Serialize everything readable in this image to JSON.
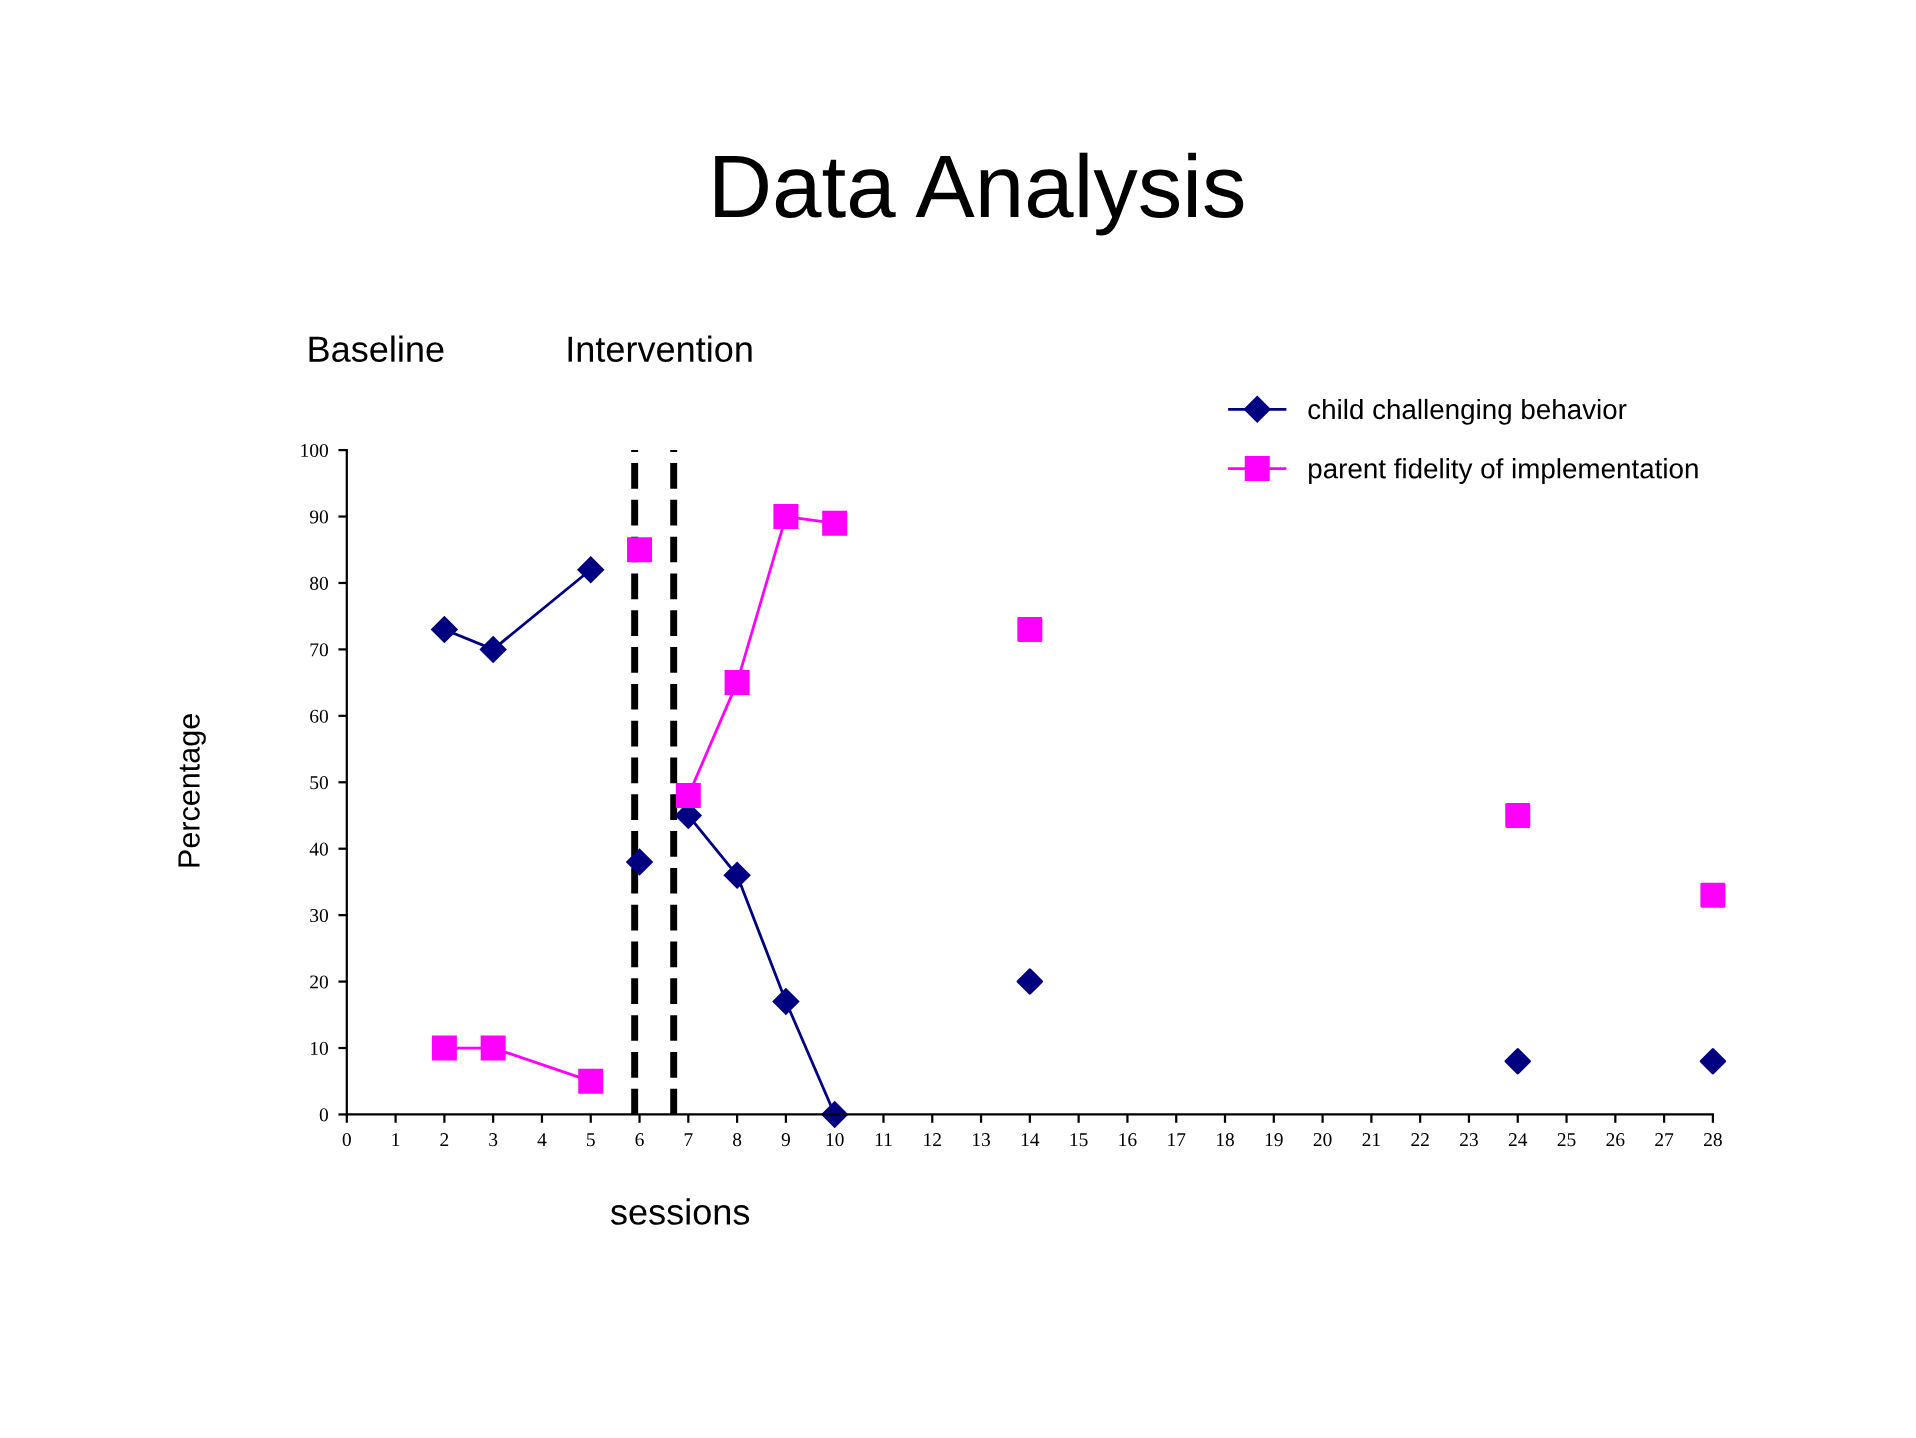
{
  "chart_data": {
    "type": "line",
    "title": "Data Analysis",
    "xlabel": "sessions",
    "ylabel": "Percentage",
    "annotations": [
      "Baseline",
      "Intervention"
    ],
    "xlim": [
      0,
      28
    ],
    "xticks": [
      0,
      1,
      2,
      3,
      4,
      5,
      6,
      7,
      8,
      9,
      10,
      11,
      12,
      13,
      14,
      15,
      16,
      17,
      18,
      19,
      20,
      21,
      22,
      23,
      24,
      25,
      26,
      27,
      28
    ],
    "ylim": [
      0,
      100
    ],
    "yticks": [
      0,
      10,
      20,
      30,
      40,
      50,
      60,
      70,
      80,
      90,
      100
    ],
    "grid": false,
    "legend": "top right",
    "series": [
      {
        "name": "child challenging behavior",
        "color": "#000080",
        "marker": "diamond",
        "x": [
          2,
          3,
          5
        ],
        "values": [
          73,
          70,
          82
        ]
      },
      {
        "name": "parent fidelity of implementation",
        "color": "#ff00ff",
        "marker": "square",
        "x": [
          2,
          3,
          5
        ],
        "values": [
          10,
          10,
          5
        ]
      },
      {
        "color": "#000080",
        "marker": "diamond",
        "x": [
          6
        ],
        "values": [
          38
        ]
      },
      {
        "color": "#ff00ff",
        "marker": "square",
        "x": [
          6
        ],
        "values": [
          85
        ]
      },
      {
        "color": "#000080",
        "marker": "diamond",
        "x": [
          7,
          8,
          9,
          10
        ],
        "values": [
          45,
          36,
          17,
          0
        ]
      },
      {
        "color": "#ff00ff",
        "marker": "square",
        "x": [
          7,
          8,
          9,
          10
        ],
        "values": [
          48,
          65,
          90,
          89
        ]
      },
      {
        "type": "scatter",
        "color": "#000080",
        "marker": "diamond",
        "x": [
          14,
          24,
          28
        ],
        "values": [
          20,
          8,
          8
        ]
      },
      {
        "type": "scatter",
        "color": "#ff00ff",
        "marker": "square",
        "x": [
          14,
          24,
          28
        ],
        "values": [
          73,
          45,
          33
        ]
      }
    ],
    "ref_lines": [
      {
        "axis": "x",
        "value": 5.9,
        "color": "#000000",
        "line_style": "dashed"
      },
      {
        "axis": "x",
        "value": 6.7,
        "color": "#000000",
        "line_style": "dashed"
      }
    ]
  }
}
